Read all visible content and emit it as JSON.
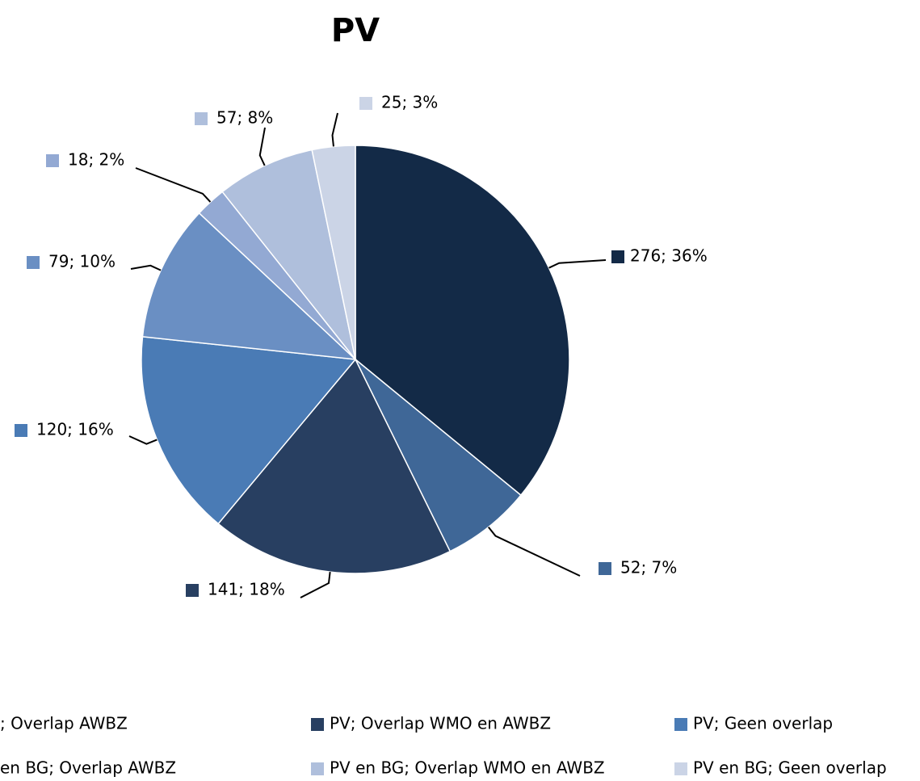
{
  "chart_data": {
    "type": "pie",
    "title": "PV",
    "categories": [
      null,
      "; Overlap AWBZ",
      "PV; Overlap WMO en AWBZ",
      "PV; Geen overlap",
      null,
      "en BG; Overlap AWBZ",
      "PV en BG; Overlap WMO en AWBZ",
      "PV en BG; Geen overlap"
    ],
    "values": [
      276,
      52,
      141,
      120,
      79,
      18,
      57,
      25
    ],
    "value_labels": [
      "276; 36%",
      "52; 7%",
      "141; 18%",
      "120; 16%",
      "79; 10%",
      "18; 2%",
      "57; 8%",
      "25; 3%"
    ],
    "colors": [
      "#132a47",
      "#3f6797",
      "#283f61",
      "#4a7bb5",
      "#6a8fc3",
      "#93a9d3",
      "#afbfdc",
      "#cbd4e6"
    ],
    "legend": "bottom"
  }
}
